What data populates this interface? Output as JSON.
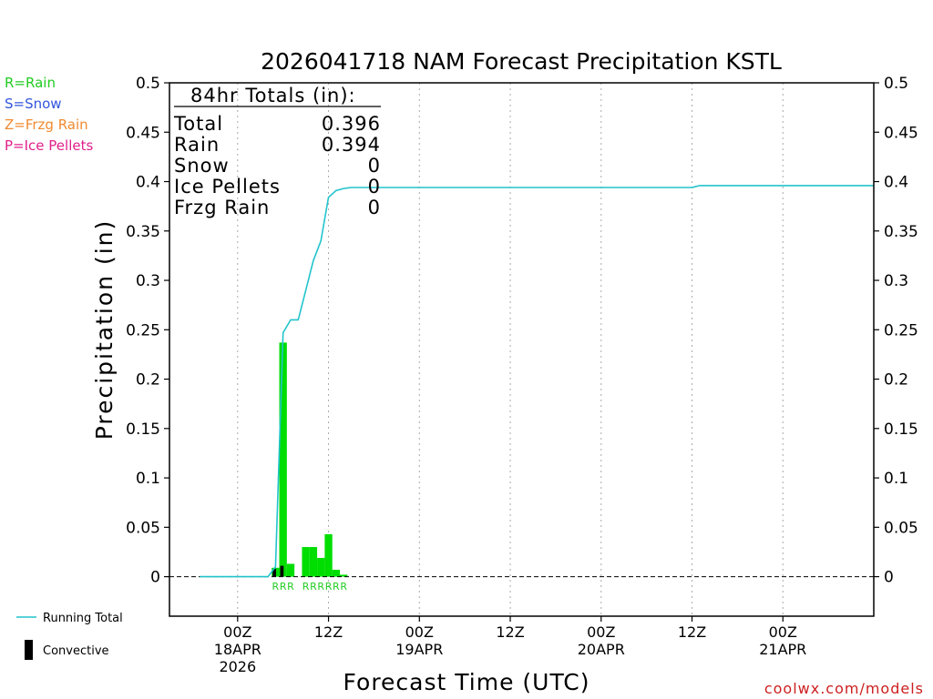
{
  "chart_data": {
    "type": "bar",
    "title": "2026041718 NAM Forecast Precipitation KSTL",
    "xlabel": "Forecast Time (UTC)",
    "ylabel": "Precipitation (in)",
    "ylim": [
      -0.04,
      0.5
    ],
    "xlim_hours": [
      -9,
      84
    ],
    "y_ticks": [
      0,
      0.05,
      0.1,
      0.15,
      0.2,
      0.25,
      0.3,
      0.35,
      0.4,
      0.45,
      0.5
    ],
    "y_tick_labels": [
      "0",
      "0.05",
      "0.1",
      "0.15",
      "0.2",
      "0.25",
      "0.3",
      "0.35",
      "0.4",
      "0.45",
      "0.5"
    ],
    "x_ticks": [
      {
        "h": 0,
        "label": "00Z",
        "date": "18APR",
        "year": "2026"
      },
      {
        "h": 12,
        "label": "12Z",
        "date": "",
        "year": ""
      },
      {
        "h": 24,
        "label": "00Z",
        "date": "19APR",
        "year": ""
      },
      {
        "h": 36,
        "label": "12Z",
        "date": "",
        "year": ""
      },
      {
        "h": 48,
        "label": "00Z",
        "date": "20APR",
        "year": ""
      },
      {
        "h": 60,
        "label": "12Z",
        "date": "",
        "year": ""
      },
      {
        "h": 72,
        "label": "00Z",
        "date": "21APR",
        "year": ""
      }
    ],
    "grid": "vertical dotted",
    "bars": [
      {
        "h": 5,
        "value": 0.009,
        "convective": 0.008,
        "ptype": "R"
      },
      {
        "h": 6,
        "value": 0.237,
        "convective": 0.011,
        "ptype": "R"
      },
      {
        "h": 7,
        "value": 0.013,
        "convective": 0,
        "ptype": "R"
      },
      {
        "h": 8,
        "value": 0,
        "convective": 0,
        "ptype": ""
      },
      {
        "h": 9,
        "value": 0.03,
        "convective": 0,
        "ptype": "R"
      },
      {
        "h": 10,
        "value": 0.03,
        "convective": 0,
        "ptype": "R"
      },
      {
        "h": 11,
        "value": 0.019,
        "convective": 0,
        "ptype": "R"
      },
      {
        "h": 12,
        "value": 0.043,
        "convective": 0,
        "ptype": "R"
      },
      {
        "h": 13,
        "value": 0.007,
        "convective": 0,
        "ptype": "R"
      },
      {
        "h": 14,
        "value": 0.002,
        "convective": 0,
        "ptype": "R"
      }
    ],
    "running_total": [
      [
        -5,
        0
      ],
      [
        4,
        0
      ],
      [
        5,
        0.01
      ],
      [
        6,
        0.247
      ],
      [
        7,
        0.26
      ],
      [
        8,
        0.26
      ],
      [
        9,
        0.29
      ],
      [
        10,
        0.32
      ],
      [
        11,
        0.34
      ],
      [
        12,
        0.384
      ],
      [
        13,
        0.391
      ],
      [
        14,
        0.393
      ],
      [
        15,
        0.394
      ],
      [
        60,
        0.394
      ],
      [
        61,
        0.396
      ],
      [
        84,
        0.396
      ]
    ],
    "totals_box": {
      "header": "84hr Totals (in):",
      "rows": [
        {
          "label": "Total",
          "value": "0.396"
        },
        {
          "label": "Rain",
          "value": "0.394"
        },
        {
          "label": "Snow",
          "value": "0"
        },
        {
          "label": "Ice Pellets",
          "value": "0"
        },
        {
          "label": "Frzg Rain",
          "value": "0"
        }
      ]
    },
    "ptype_legend": [
      {
        "text": "R=Rain",
        "color": "#22cc22"
      },
      {
        "text": "S=Snow",
        "color": "#3355dd"
      },
      {
        "text": "Z=Frzg Rain",
        "color": "#f08a30"
      },
      {
        "text": "P=Ice Pellets",
        "color": "#e0208a"
      }
    ],
    "series_legend": [
      {
        "name": "Running Total",
        "color": "#22c4cc",
        "kind": "line"
      },
      {
        "name": "Convective",
        "color": "#000000",
        "kind": "bar"
      }
    ],
    "credit": "coolwx.com/models",
    "colors": {
      "rain_bar": "#00dd00",
      "convective_bar": "#000000",
      "running_total": "#22c4cc",
      "credit": "#cc2020"
    }
  }
}
